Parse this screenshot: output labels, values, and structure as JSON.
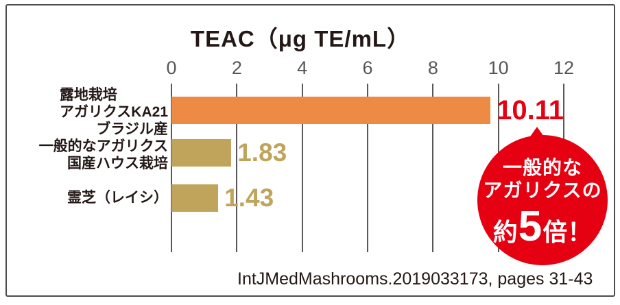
{
  "chart_data": {
    "type": "bar",
    "orientation": "horizontal",
    "title": "TEAC（μg TE/mL）",
    "categories": [
      "露地栽培 アガリクスKA21 ブラジル産",
      "一般的なアガリクス 国産ハウス栽培",
      "霊芝（レイシ）"
    ],
    "values": [
      10.11,
      1.83,
      1.43
    ],
    "value_labels": [
      "10.11",
      "1.83",
      "1.43"
    ],
    "x_ticks": [
      "0",
      "2",
      "4",
      "6",
      "8",
      "10",
      "12"
    ],
    "xlim": [
      0,
      12
    ],
    "grid": true,
    "bar_colors": [
      "#ED8A44",
      "#C0A45C",
      "#C0A45C"
    ],
    "value_label_colors": [
      "#E50012",
      "#BFA45C",
      "#BFA45C"
    ],
    "gridline_color": "#595757",
    "annotation": "一般的なアガリクスの約5倍！",
    "source": "IntJMedMashrooms.2019033173, pages 31-43"
  },
  "labels": [
    {
      "lines": [
        "露地栽培",
        "アガリクスKA21",
        "ブラジル産"
      ]
    },
    {
      "lines": [
        "一般的なアガリクス",
        "国産ハウス栽培"
      ]
    },
    {
      "lines": [
        "霊芝（レイシ）"
      ]
    }
  ],
  "badge": {
    "lines": [
      "一般的な",
      "アガリクスの"
    ],
    "approx": "約",
    "number": "5",
    "suffix": "倍！",
    "color": "#E50012"
  }
}
